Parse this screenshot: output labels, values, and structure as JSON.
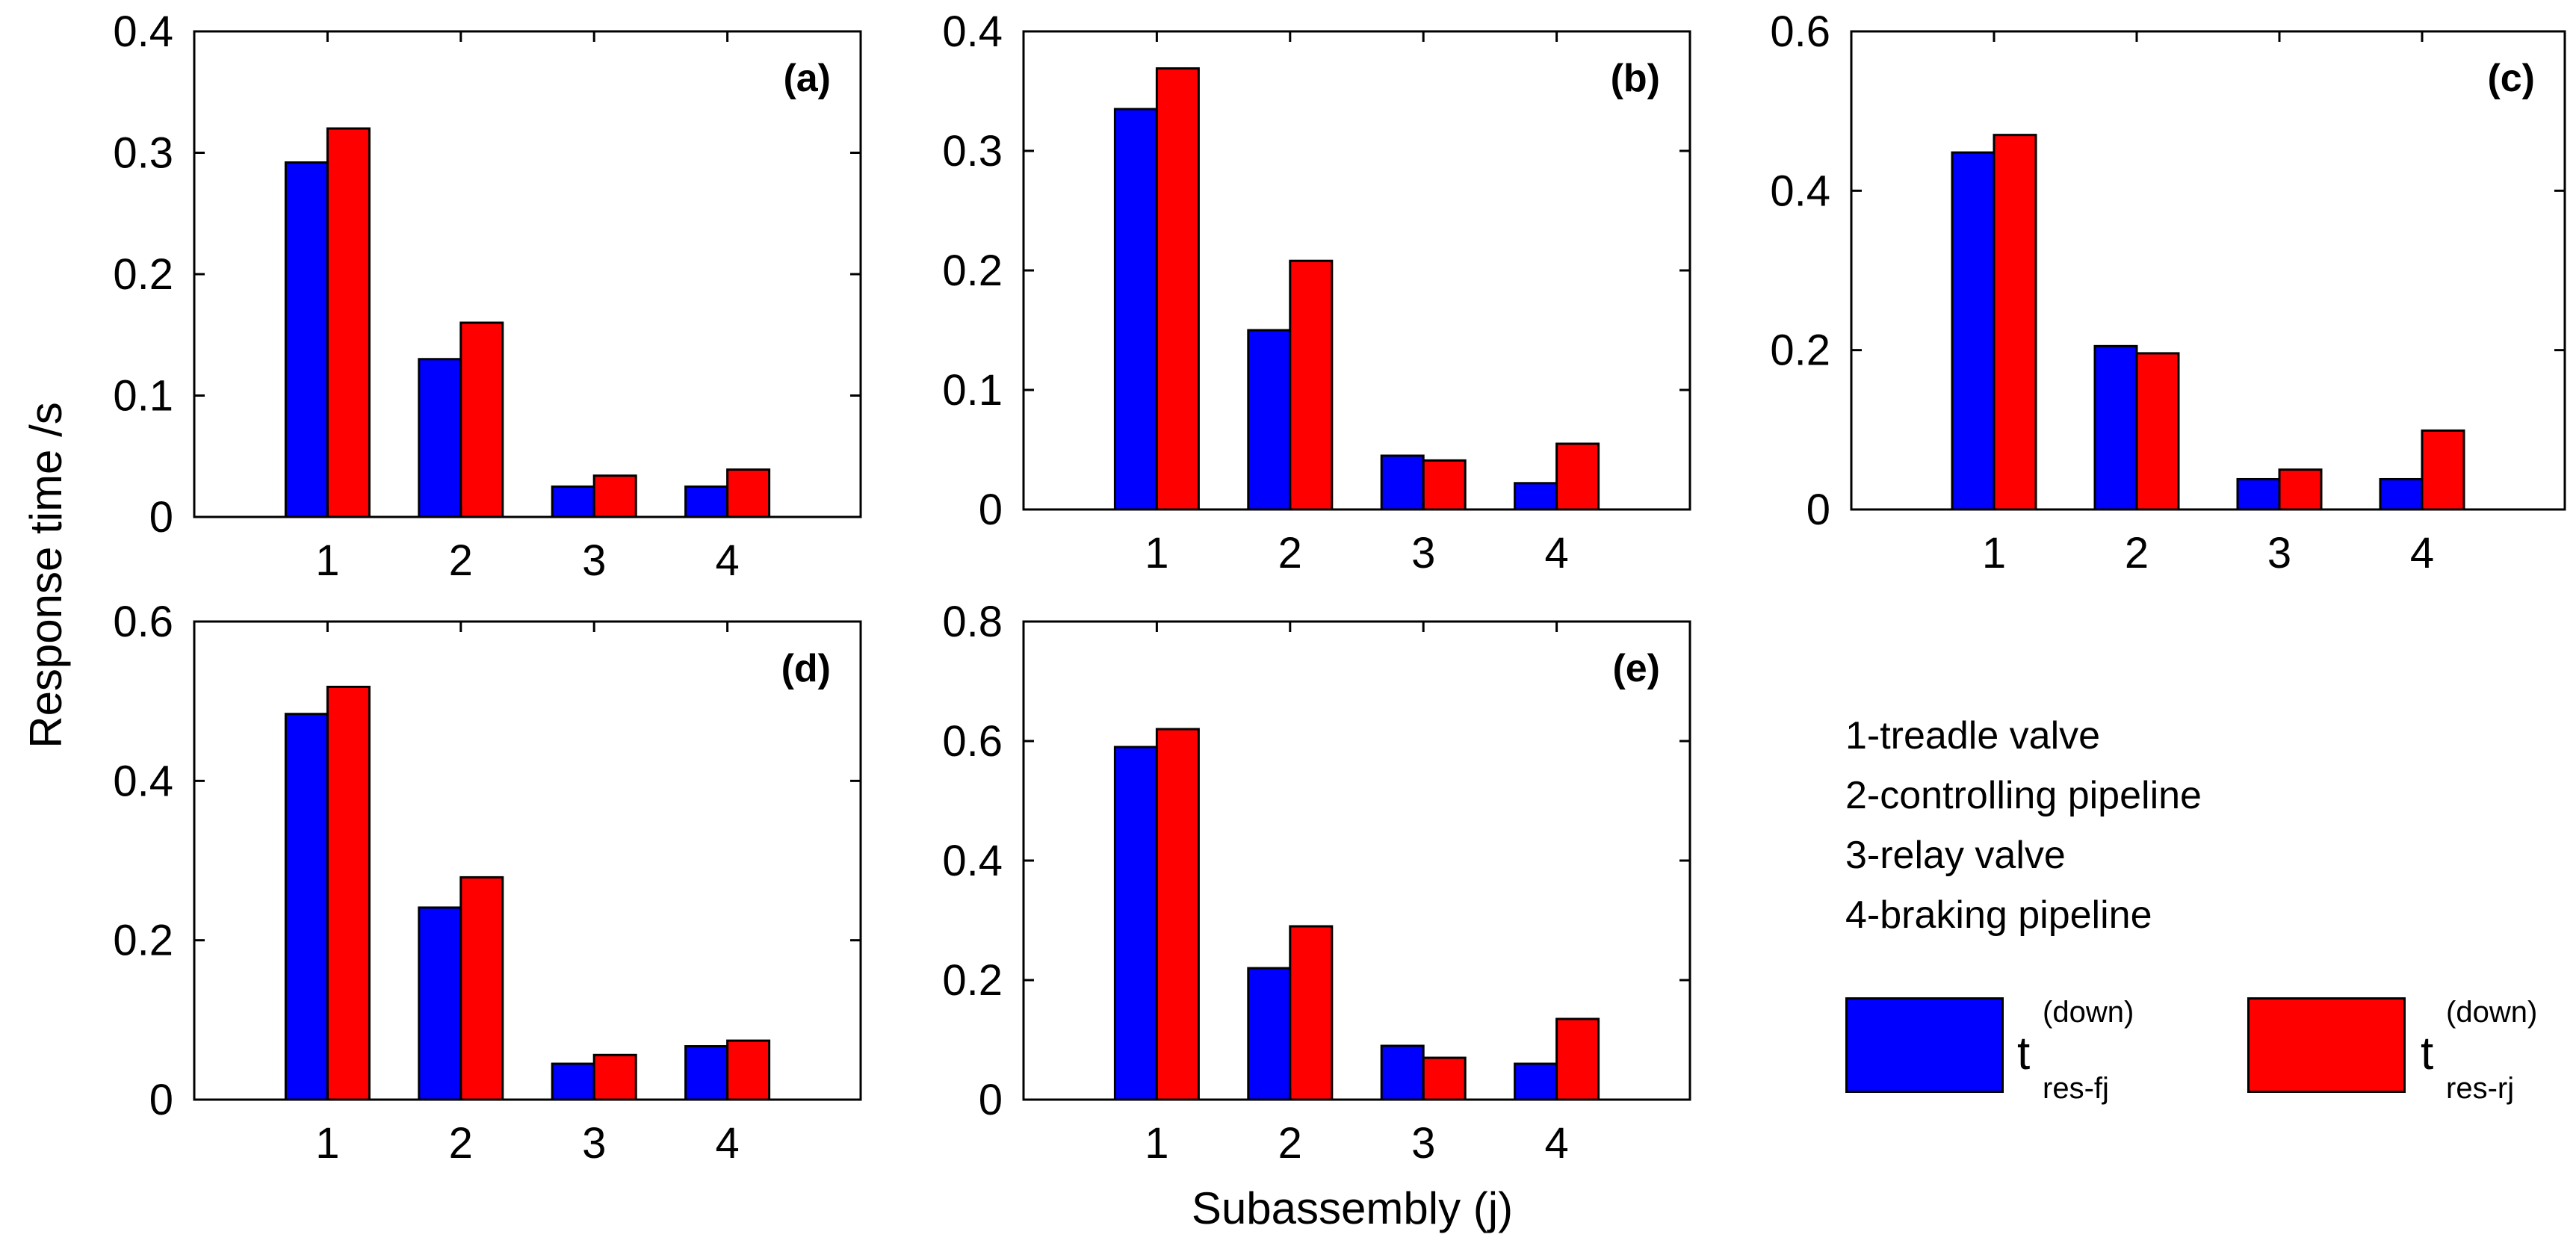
{
  "figure": {
    "ylabel": "Response time /s",
    "xlabel": "Subassembly (j)"
  },
  "colors": {
    "front": "#0000ff",
    "rear": "#ff0000",
    "axis": "#000000"
  },
  "legend": {
    "items": [
      "1-treadle valve",
      "2-controlling pipeline",
      "3-relay valve",
      "4-braking pipeline"
    ],
    "series": [
      {
        "name": "t res-fj (down)",
        "base": "t",
        "sup": "(down)",
        "sub": "res-fj",
        "color": "#0000ff"
      },
      {
        "name": "t res-rj (down)",
        "base": "t",
        "sup": "(down)",
        "sub": "res-rj",
        "color": "#ff0000"
      }
    ]
  },
  "chart_data": [
    {
      "type": "bar",
      "title": "(a)",
      "categories": [
        "1",
        "2",
        "3",
        "4"
      ],
      "ylim": [
        0,
        0.4
      ],
      "yticks": [
        "0",
        "0.1",
        "0.2",
        "0.3",
        "0.4"
      ],
      "ytick_values": [
        0,
        0.1,
        0.2,
        0.3,
        0.4
      ],
      "series": [
        {
          "name": "t res-fj (down)",
          "values": [
            0.292,
            0.13,
            0.025,
            0.025
          ]
        },
        {
          "name": "t res-rj (down)",
          "values": [
            0.32,
            0.16,
            0.034,
            0.039
          ]
        }
      ]
    },
    {
      "type": "bar",
      "title": "(b)",
      "categories": [
        "1",
        "2",
        "3",
        "4"
      ],
      "ylim": [
        0,
        0.4
      ],
      "yticks": [
        "0",
        "0.1",
        "0.2",
        "0.3",
        "0.4"
      ],
      "ytick_values": [
        0,
        0.1,
        0.2,
        0.3,
        0.4
      ],
      "series": [
        {
          "name": "t res-fj (down)",
          "values": [
            0.335,
            0.15,
            0.045,
            0.022
          ]
        },
        {
          "name": "t res-rj (down)",
          "values": [
            0.369,
            0.208,
            0.041,
            0.055
          ]
        }
      ]
    },
    {
      "type": "bar",
      "title": "(c)",
      "categories": [
        "1",
        "2",
        "3",
        "4"
      ],
      "ylim": [
        0,
        0.6
      ],
      "yticks": [
        "0",
        "0.2",
        "0.4",
        "0.6"
      ],
      "ytick_values": [
        0,
        0.2,
        0.4,
        0.6
      ],
      "series": [
        {
          "name": "t res-fj (down)",
          "values": [
            0.448,
            0.205,
            0.038,
            0.038
          ]
        },
        {
          "name": "t res-rj (down)",
          "values": [
            0.47,
            0.196,
            0.05,
            0.099
          ]
        }
      ]
    },
    {
      "type": "bar",
      "title": "(d)",
      "categories": [
        "1",
        "2",
        "3",
        "4"
      ],
      "ylim": [
        0,
        0.6
      ],
      "yticks": [
        "0",
        "0.2",
        "0.4",
        "0.6"
      ],
      "ytick_values": [
        0,
        0.2,
        0.4,
        0.6
      ],
      "series": [
        {
          "name": "t res-fj (down)",
          "values": [
            0.484,
            0.241,
            0.045,
            0.067
          ]
        },
        {
          "name": "t res-rj (down)",
          "values": [
            0.518,
            0.279,
            0.056,
            0.074
          ]
        }
      ]
    },
    {
      "type": "bar",
      "title": "(e)",
      "categories": [
        "1",
        "2",
        "3",
        "4"
      ],
      "ylim": [
        0,
        0.8
      ],
      "yticks": [
        "0",
        "0.2",
        "0.4",
        "0.6",
        "0.8"
      ],
      "ytick_values": [
        0,
        0.2,
        0.4,
        0.6,
        0.8
      ],
      "series": [
        {
          "name": "t res-fj (down)",
          "values": [
            0.59,
            0.22,
            0.09,
            0.06
          ]
        },
        {
          "name": "t res-rj (down)",
          "values": [
            0.62,
            0.29,
            0.07,
            0.135
          ]
        }
      ]
    }
  ]
}
